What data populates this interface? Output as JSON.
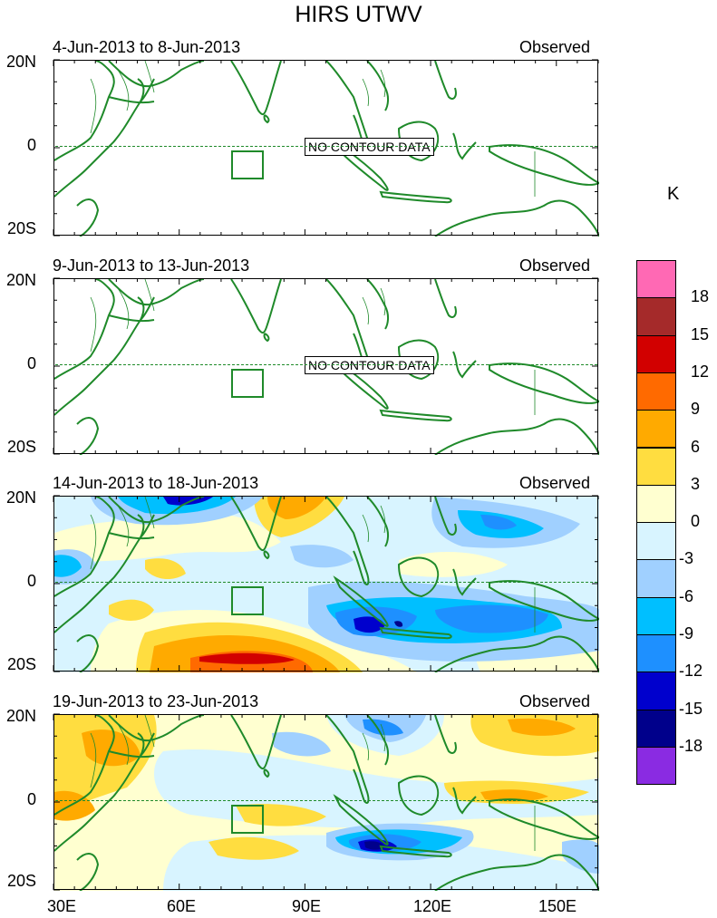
{
  "figure": {
    "title": "HIRS UTWV",
    "units": "K",
    "no_contour_text": "NO CONTOUR DATA"
  },
  "panels": [
    {
      "left_title": "4-Jun-2013 to 8-Jun-2013",
      "right_title": "Observed",
      "no_data": true
    },
    {
      "left_title": "9-Jun-2013 to 13-Jun-2013",
      "right_title": "Observed",
      "no_data": true
    },
    {
      "left_title": "14-Jun-2013 to 18-Jun-2013",
      "right_title": "Observed",
      "no_data": false
    },
    {
      "left_title": "19-Jun-2013 to 23-Jun-2013",
      "right_title": "Observed",
      "no_data": false
    }
  ],
  "axes": {
    "y_labels": [
      "20N",
      "0",
      "20S"
    ],
    "x_labels": [
      "30E",
      "60E",
      "90E",
      "120E",
      "150E"
    ]
  },
  "colorbar": {
    "labels": [
      "18",
      "15",
      "12",
      "9",
      "6",
      "3",
      "0",
      "-3",
      "-6",
      "-9",
      "-12",
      "-15",
      "-18"
    ],
    "colors": [
      "#ff69b4",
      "#a52a2a",
      "#d20000",
      "#ff6a00",
      "#ffaa00",
      "#ffdd40",
      "#ffffd0",
      "#d8f4ff",
      "#a0d0ff",
      "#00bfff",
      "#1e90ff",
      "#0000cd",
      "#00008b",
      "#8a2be2"
    ]
  },
  "map_colors": {
    "coast": "#1f8a2a",
    "warm_light": "#ffffd0",
    "warm_mid": "#ffdd40",
    "warm": "#ffaa00",
    "hot": "#ff6a00",
    "very_hot": "#d20000",
    "cool_light": "#d8f4ff",
    "cool_mid": "#a0d0ff",
    "cool": "#00bfff",
    "cold": "#1e90ff",
    "very_cold": "#0000cd",
    "extreme_cold": "#00008b"
  }
}
